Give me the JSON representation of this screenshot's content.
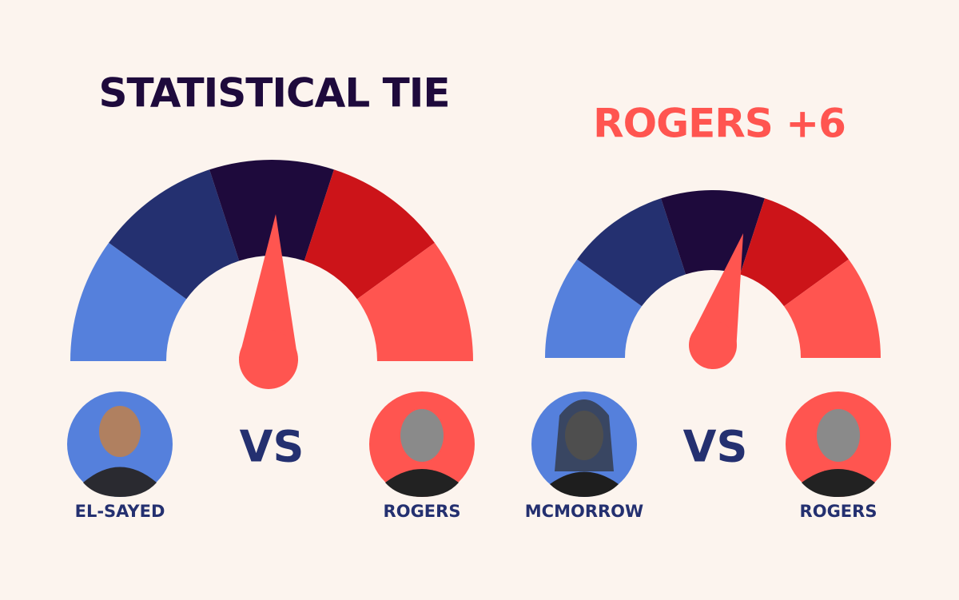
{
  "gauges": [
    {
      "title": "STATISTICAL TIE",
      "left_candidate": "EL-SAYED",
      "vs": "VS",
      "right_candidate": "ROGERS"
    },
    {
      "title": "ROGERS +6",
      "left_candidate": "MCMORROW",
      "vs": "VS",
      "right_candidate": "ROGERS"
    }
  ]
}
